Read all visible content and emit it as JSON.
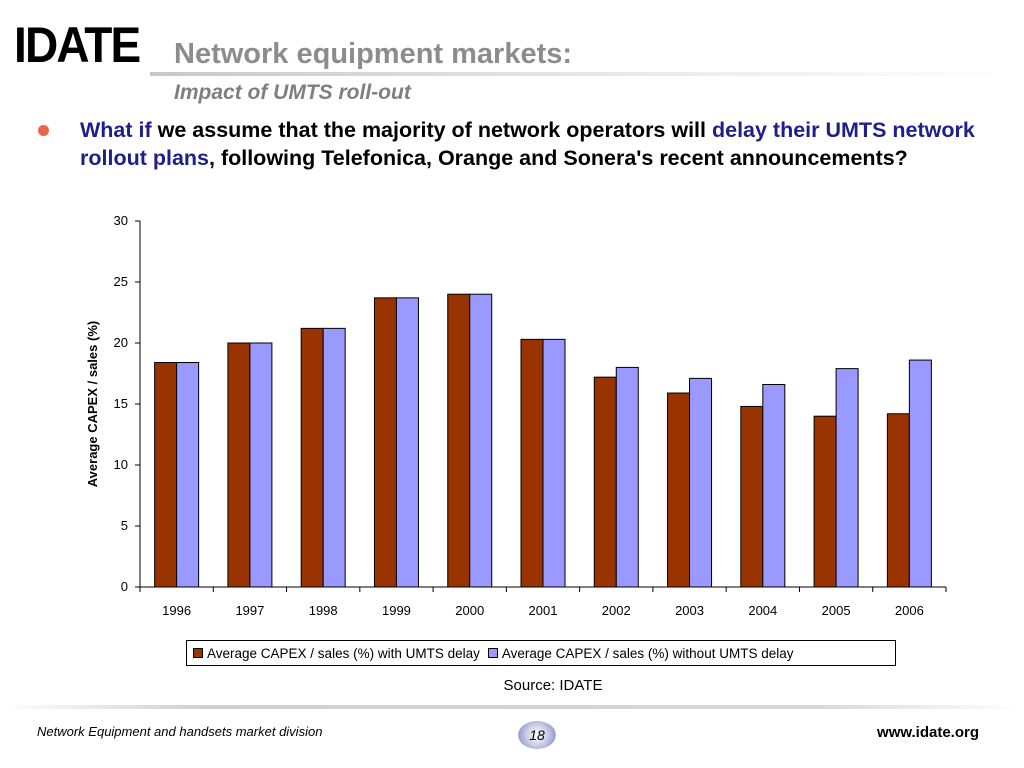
{
  "header": {
    "logo_text": "IDATE",
    "title": "Network equipment markets:",
    "subtitle": "Impact of UMTS roll-out"
  },
  "bullet": {
    "part1": "What if",
    "part2": " we assume that the majority of network operators will ",
    "part3": "delay their UMTS network rollout plans",
    "part4": ", following Telefonica, Orange and Sonera's recent announcements?"
  },
  "chart_data": {
    "type": "bar",
    "categories": [
      "1996",
      "1997",
      "1998",
      "1999",
      "2000",
      "2001",
      "2002",
      "2003",
      "2004",
      "2005",
      "2006"
    ],
    "series": [
      {
        "name": "Average CAPEX / sales (%) with UMTS delay",
        "color": "#993300",
        "values": [
          18.4,
          20.0,
          21.2,
          23.7,
          24.0,
          20.3,
          17.2,
          15.9,
          14.8,
          14.0,
          14.2
        ]
      },
      {
        "name": "Average CAPEX / sales (%) without UMTS delay",
        "color": "#9999ff",
        "values": [
          18.4,
          20.0,
          21.2,
          23.7,
          24.0,
          20.3,
          18.0,
          17.1,
          16.6,
          17.9,
          18.6
        ]
      }
    ],
    "ylabel": "Average CAPEX / sales (%)",
    "xlabel": "",
    "ylim": [
      0,
      30
    ],
    "yticks": [
      0,
      5,
      10,
      15,
      20,
      25,
      30
    ],
    "grid": false,
    "legend": "bottom"
  },
  "source": "Source: IDATE",
  "footer": {
    "left": "Network Equipment and handsets market division",
    "page": "18",
    "right": "www.idate.org"
  }
}
